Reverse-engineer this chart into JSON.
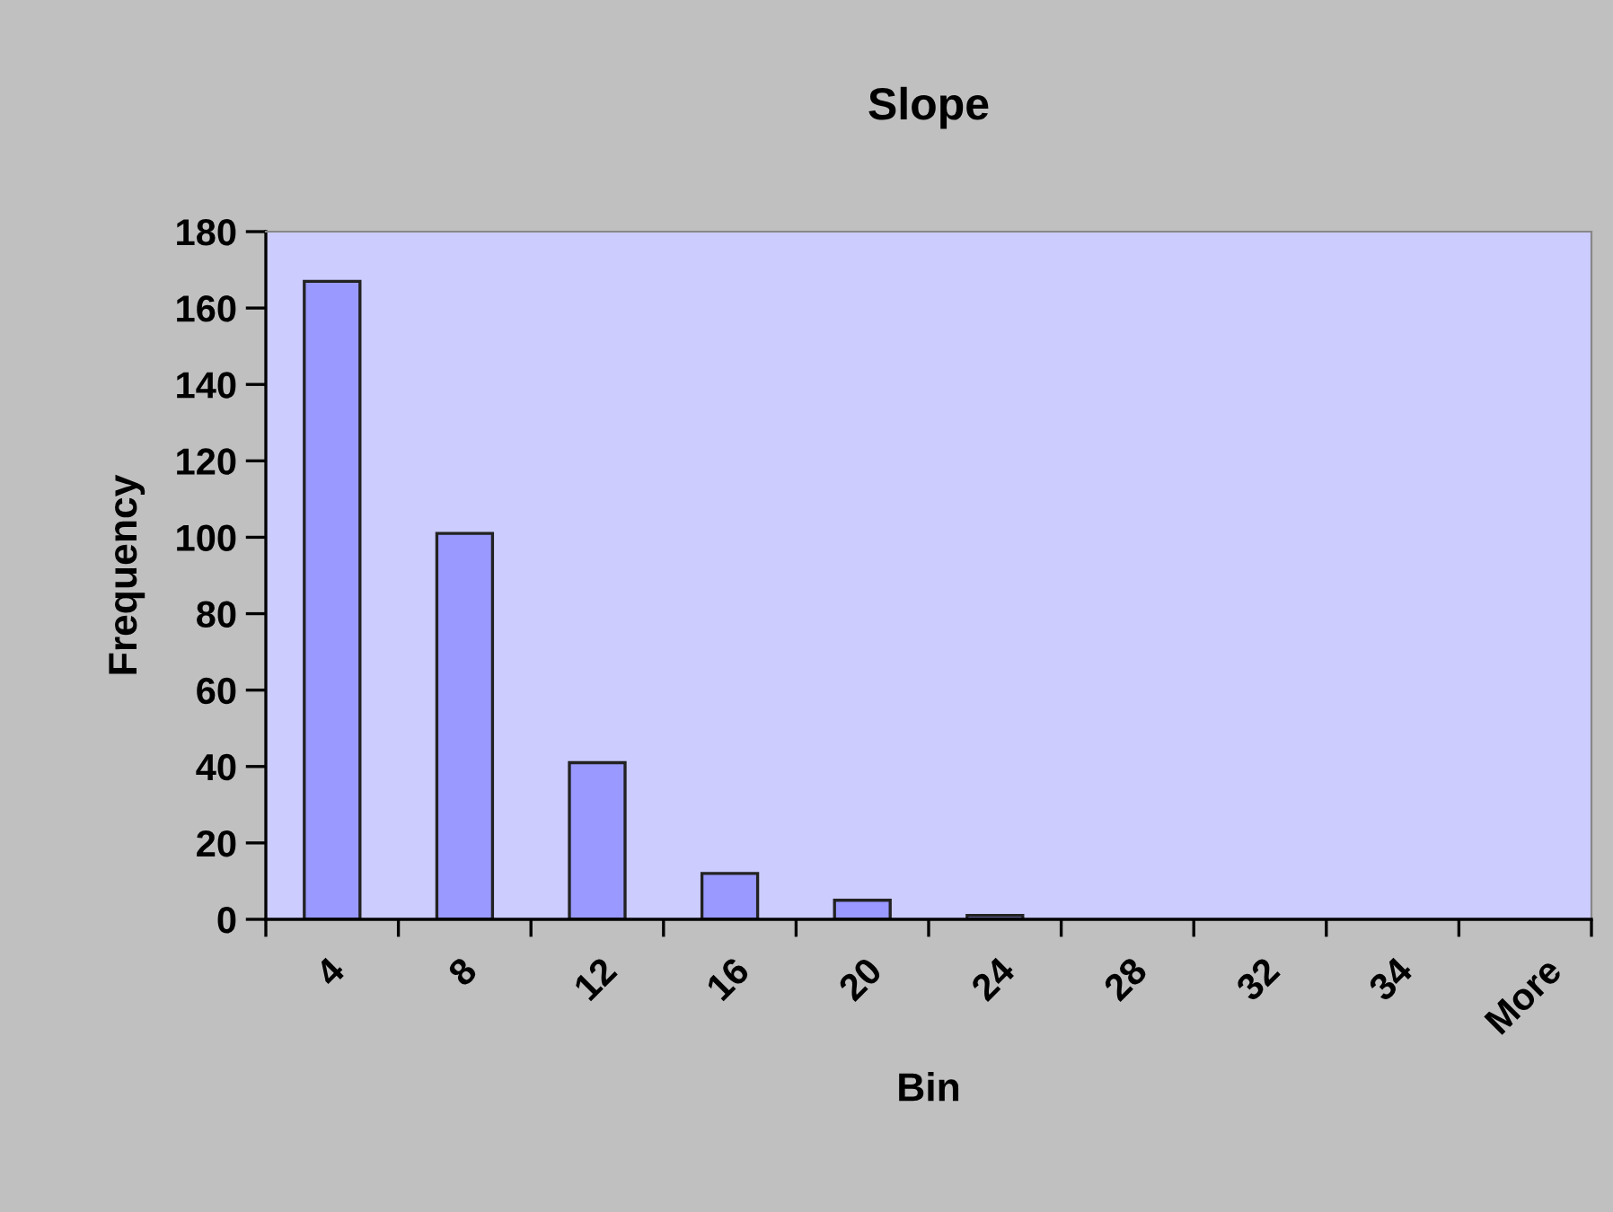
{
  "chart_data": {
    "type": "bar",
    "title": "Slope",
    "xlabel": "Bin",
    "ylabel": "Frequency",
    "categories": [
      "4",
      "8",
      "12",
      "16",
      "20",
      "24",
      "28",
      "32",
      "34",
      "More"
    ],
    "values": [
      167,
      101,
      41,
      12,
      5,
      1,
      0,
      0,
      0,
      0
    ],
    "color": "#9999ff",
    "ylim": [
      0,
      180
    ],
    "yticks": [
      0,
      20,
      40,
      60,
      80,
      100,
      120,
      140,
      160,
      180
    ],
    "grid": false
  }
}
